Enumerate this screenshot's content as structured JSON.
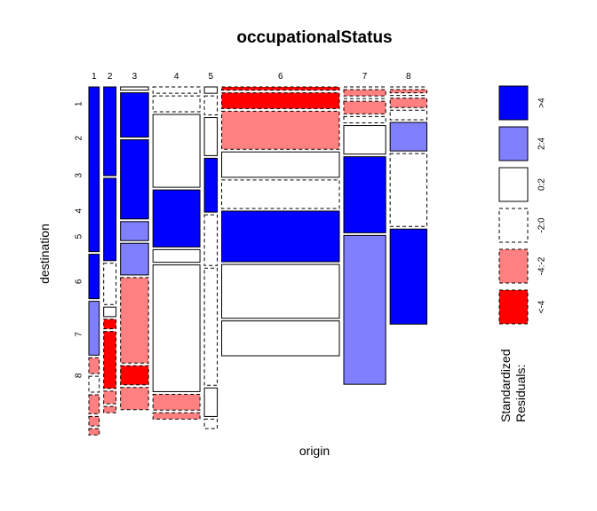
{
  "chart_data": {
    "type": "mosaic",
    "title": "occupationalStatus",
    "xlabel": "origin",
    "ylabel": "destination",
    "origin_levels": [
      "1",
      "2",
      "3",
      "4",
      "5",
      "6",
      "7",
      "8"
    ],
    "destination_levels": [
      "1",
      "2",
      "3",
      "4",
      "5",
      "6",
      "7",
      "8"
    ],
    "origin_proportions": [
      0.0307,
      0.0366,
      0.0828,
      0.1388,
      0.038,
      0.3476,
      0.1238,
      0.1086
    ],
    "conditional_proportions": [
      [
        0.52,
        0.14,
        0.17,
        0.05,
        0.05,
        0.06,
        0.03,
        0.02
      ],
      [
        0.28,
        0.26,
        0.13,
        0.03,
        0.03,
        0.18,
        0.04,
        0.02
      ],
      [
        0.01,
        0.14,
        0.25,
        0.06,
        0.1,
        0.27,
        0.06,
        0.07
      ],
      [
        0.02,
        0.05,
        0.23,
        0.18,
        0.04,
        0.4,
        0.05,
        0.02
      ],
      [
        0.02,
        0.06,
        0.12,
        0.17,
        0.16,
        0.37,
        0.09,
        0.03
      ],
      [
        0.01,
        0.05,
        0.12,
        0.08,
        0.09,
        0.16,
        0.17,
        0.11
      ],
      [
        0.0,
        0.02,
        0.0,
        0.04,
        0.02,
        0.09,
        0.24,
        0.47
      ],
      [
        0.0,
        0.01,
        0.0,
        0.03,
        0.03,
        0.09,
        0.23,
        0.3
      ]
    ],
    "residual_classes": [
      [
        ">4",
        ">4",
        "2:4",
        "-4:-2",
        "-2:0",
        "-4:-2",
        "-4:-2",
        "-4:-2"
      ],
      [
        ">4",
        ">4",
        "-2:0",
        "0:2",
        "<-4",
        "<-4",
        "-4:-2",
        "-4:-2"
      ],
      [
        "0:2",
        ">4",
        ">4",
        "2:4",
        "2:4",
        "-4:-2",
        "<-4",
        "-4:-2"
      ],
      [
        "-2:0",
        "-2:0",
        "0:2",
        ">4",
        "0:2",
        "0:2",
        "-4:-2",
        "-4:-2"
      ],
      [
        "0:2",
        "-2:0",
        "0:2",
        ">4",
        "-2:0",
        "-2:0",
        "0:2",
        "-2:0"
      ],
      [
        "<-4",
        "<-4",
        "-4:-2",
        "0:2",
        "-2:0",
        ">4",
        "0:2",
        "0:2"
      ],
      [
        "-2:0",
        "-4:-2",
        "-4:-2",
        "-4:-2",
        "-2:0",
        "0:2",
        ">4",
        "2:4"
      ],
      [
        "-2:0",
        "-4:-2",
        "-4:-2",
        "-4:-2",
        "-2:0",
        "2:4",
        "-2:0",
        ">4"
      ]
    ],
    "legend": {
      "title": "Standardized\nResiduals:",
      "labels": [
        ">4",
        "2:4",
        "0:2",
        "-2:0",
        "-4:-2",
        "<-4"
      ],
      "colors": [
        "#0000FF",
        "#8080FF",
        "#FFFFFF",
        "#FFFFFF",
        "#FF8080",
        "#FF0000"
      ],
      "dashed": [
        false,
        false,
        false,
        true,
        true,
        true
      ]
    }
  }
}
